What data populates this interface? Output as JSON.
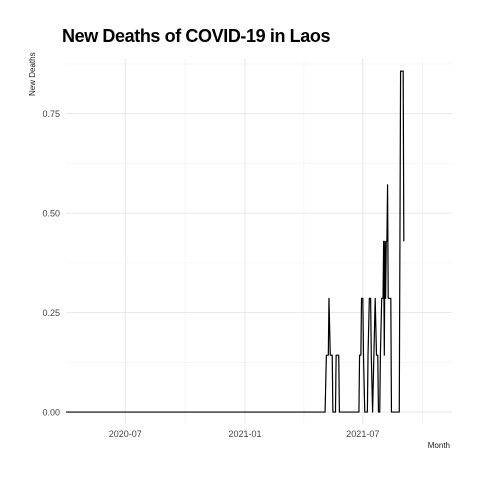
{
  "chart_data": {
    "type": "line",
    "title": "New Deaths of COVID-19 in Laos",
    "xlabel": "Month",
    "ylabel": "New Deaths",
    "x_ticks": [
      "2020-07",
      "2021-01",
      "2021-07"
    ],
    "y_ticks": [
      "0.00",
      "0.25",
      "0.50",
      "0.75"
    ],
    "xlim": [
      "2020-04-01",
      "2021-11-15"
    ],
    "ylim": [
      -0.03,
      0.89
    ],
    "grid": true,
    "line_color": "#000000",
    "series": [
      {
        "points": [
          [
            "2020-04-01",
            0
          ],
          [
            "2021-05-04",
            0
          ],
          [
            "2021-05-06",
            0.143
          ],
          [
            "2021-05-09",
            0.143
          ],
          [
            "2021-05-10",
            0.286
          ],
          [
            "2021-05-12",
            0.143
          ],
          [
            "2021-05-15",
            0.143
          ],
          [
            "2021-05-16",
            0
          ],
          [
            "2021-05-20",
            0
          ],
          [
            "2021-05-21",
            0.143
          ],
          [
            "2021-05-25",
            0.143
          ],
          [
            "2021-05-26",
            0
          ],
          [
            "2021-06-25",
            0
          ],
          [
            "2021-06-26",
            0.143
          ],
          [
            "2021-06-28",
            0.143
          ],
          [
            "2021-06-29",
            0.286
          ],
          [
            "2021-07-01",
            0.286
          ],
          [
            "2021-07-02",
            0.143
          ],
          [
            "2021-07-04",
            0
          ],
          [
            "2021-07-08",
            0
          ],
          [
            "2021-07-09",
            0.143
          ],
          [
            "2021-07-11",
            0.286
          ],
          [
            "2021-07-13",
            0.286
          ],
          [
            "2021-07-14",
            0.143
          ],
          [
            "2021-07-16",
            0
          ],
          [
            "2021-07-18",
            0.143
          ],
          [
            "2021-07-20",
            0.286
          ],
          [
            "2021-07-22",
            0.143
          ],
          [
            "2021-07-24",
            0.143
          ],
          [
            "2021-07-25",
            0
          ],
          [
            "2021-07-27",
            0
          ],
          [
            "2021-07-28",
            0.143
          ],
          [
            "2021-07-30",
            0.286
          ],
          [
            "2021-08-01",
            0.286
          ],
          [
            "2021-08-02",
            0.429
          ],
          [
            "2021-08-03",
            0.143
          ],
          [
            "2021-08-04",
            0.429
          ],
          [
            "2021-08-05",
            0.286
          ],
          [
            "2021-08-06",
            0.429
          ],
          [
            "2021-08-07",
            0.429
          ],
          [
            "2021-08-08",
            0.571
          ],
          [
            "2021-08-09",
            0.286
          ],
          [
            "2021-08-13",
            0.286
          ],
          [
            "2021-08-14",
            0
          ],
          [
            "2021-08-26",
            0
          ],
          [
            "2021-08-28",
            0.857
          ],
          [
            "2021-09-01",
            0.857
          ],
          [
            "2021-09-02",
            0.429
          ]
        ]
      }
    ]
  }
}
